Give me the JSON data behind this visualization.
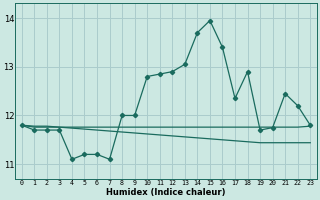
{
  "x": [
    0,
    1,
    2,
    3,
    4,
    5,
    6,
    7,
    8,
    9,
    10,
    11,
    12,
    13,
    14,
    15,
    16,
    17,
    18,
    19,
    20,
    21,
    22,
    23
  ],
  "line1": [
    11.8,
    11.7,
    11.7,
    11.7,
    11.1,
    11.2,
    11.2,
    11.1,
    12.0,
    12.0,
    12.8,
    12.85,
    12.9,
    13.05,
    13.7,
    13.95,
    13.4,
    12.35,
    12.9,
    11.7,
    11.75,
    12.45,
    12.2,
    11.8
  ],
  "line2": [
    11.8,
    11.76,
    11.76,
    11.76,
    11.76,
    11.76,
    11.76,
    11.76,
    11.76,
    11.76,
    11.76,
    11.76,
    11.76,
    11.76,
    11.76,
    11.76,
    11.76,
    11.76,
    11.76,
    11.76,
    11.76,
    11.76,
    11.76,
    11.78
  ],
  "line3": [
    11.8,
    11.78,
    11.78,
    11.76,
    11.74,
    11.72,
    11.7,
    11.68,
    11.66,
    11.64,
    11.62,
    11.6,
    11.58,
    11.56,
    11.54,
    11.52,
    11.5,
    11.48,
    11.46,
    11.44,
    11.44,
    11.44,
    11.44,
    11.44
  ],
  "bg_color": "#cce8e2",
  "grid_color": "#aacccc",
  "line_color": "#1a6b5e",
  "ylim": [
    10.7,
    14.3
  ],
  "xlim": [
    -0.5,
    23.5
  ],
  "yticks": [
    11,
    12,
    13,
    14
  ],
  "xticks": [
    0,
    1,
    2,
    3,
    4,
    5,
    6,
    7,
    8,
    9,
    10,
    11,
    12,
    13,
    14,
    15,
    16,
    17,
    18,
    19,
    20,
    21,
    22,
    23
  ],
  "xlabel": "Humidex (Indice chaleur)",
  "xlabel_fontsize": 6.0,
  "xtick_fontsize": 4.8,
  "ytick_fontsize": 6.0
}
